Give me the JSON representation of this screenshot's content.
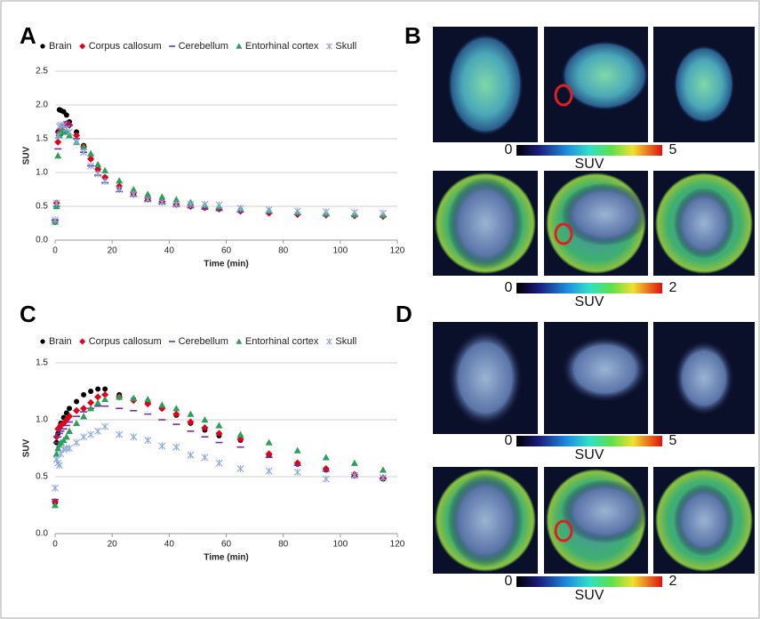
{
  "chart_data": [
    {
      "type": "scatter",
      "panel": "A",
      "xlabel": "Time (min)",
      "ylabel": "SUV",
      "x": [
        0,
        0.5,
        1,
        1.5,
        2,
        3,
        4,
        5,
        7.5,
        10,
        12.5,
        15,
        17.5,
        22.5,
        27.5,
        32.5,
        37.5,
        42.5,
        47.5,
        52.5,
        57.5,
        65,
        75,
        85,
        95,
        105,
        115
      ],
      "xlim": [
        0,
        120
      ],
      "xticks": [
        0,
        20,
        40,
        60,
        80,
        100,
        120
      ],
      "ylim": [
        0,
        2.5
      ],
      "yticks": [
        {
          "value": 0,
          "label": "0.0"
        },
        {
          "value": 0.5,
          "label": "0.5"
        },
        {
          "value": 1,
          "label": "1.0"
        },
        {
          "value": 1.5,
          "label": "1.5"
        },
        {
          "value": 2,
          "label": "2.0"
        },
        {
          "value": 2.5,
          "label": "2.5"
        }
      ],
      "grid": true,
      "legend": "top",
      "series": [
        {
          "name": "Brain",
          "color": "#000000",
          "marker": "circle",
          "values": [
            0.28,
            0.55,
            1.6,
            1.93,
            1.92,
            1.9,
            1.85,
            1.75,
            1.6,
            1.4,
            1.2,
            1.05,
            0.93,
            0.78,
            0.68,
            0.6,
            0.57,
            0.53,
            0.5,
            0.48,
            0.46,
            0.43,
            0.41,
            0.39,
            0.38,
            0.37,
            0.36
          ]
        },
        {
          "name": "Corpus callosum",
          "color": "#e3001b",
          "marker": "diamond",
          "values": [
            0.27,
            0.55,
            1.45,
            1.6,
            1.65,
            1.7,
            1.72,
            1.7,
            1.55,
            1.38,
            1.2,
            1.05,
            0.93,
            0.8,
            0.7,
            0.62,
            0.57,
            0.53,
            0.5,
            0.48,
            0.46,
            0.43,
            0.4,
            0.38,
            0.37,
            0.36,
            0.35
          ]
        },
        {
          "name": "Cerebellum",
          "color": "#7030a0",
          "marker": "dash",
          "values": [
            0.3,
            0.5,
            1.35,
            1.55,
            1.6,
            1.7,
            1.75,
            1.7,
            1.5,
            1.3,
            1.1,
            0.96,
            0.85,
            0.72,
            0.65,
            0.58,
            0.54,
            0.5,
            0.48,
            0.46,
            0.44,
            0.42,
            0.4,
            0.38,
            0.37,
            0.36,
            0.35
          ]
        },
        {
          "name": "Entorhinal cortex",
          "color": "#2ca05a",
          "marker": "triangle",
          "values": [
            0.27,
            0.5,
            1.25,
            1.55,
            1.6,
            1.62,
            1.6,
            1.55,
            1.45,
            1.38,
            1.28,
            1.12,
            1.03,
            0.88,
            0.75,
            0.68,
            0.64,
            0.6,
            0.56,
            0.52,
            0.5,
            0.47,
            0.44,
            0.41,
            0.39,
            0.38,
            0.37
          ]
        },
        {
          "name": "Skull",
          "color": "#8ea9db",
          "marker": "asterisk",
          "values": [
            0.3,
            0.55,
            1.55,
            1.68,
            1.7,
            1.7,
            1.65,
            1.6,
            1.45,
            1.3,
            1.1,
            0.98,
            0.87,
            0.75,
            0.68,
            0.6,
            0.56,
            0.53,
            0.53,
            0.53,
            0.52,
            0.47,
            0.45,
            0.43,
            0.42,
            0.41,
            0.4
          ]
        }
      ]
    },
    {
      "type": "scatter",
      "panel": "C",
      "xlabel": "Time (min)",
      "ylabel": "SUV",
      "x": [
        0,
        0.5,
        1,
        1.5,
        2,
        3,
        4,
        5,
        7.5,
        10,
        12.5,
        15,
        17.5,
        22.5,
        27.5,
        32.5,
        37.5,
        42.5,
        47.5,
        52.5,
        57.5,
        65,
        75,
        85,
        95,
        105,
        115
      ],
      "xlim": [
        0,
        120
      ],
      "xticks": [
        0,
        20,
        40,
        60,
        80,
        100,
        120
      ],
      "ylim": [
        0,
        1.5
      ],
      "yticks": [
        {
          "value": 0,
          "label": "0.0"
        },
        {
          "value": 0.5,
          "label": "0.5"
        },
        {
          "value": 1,
          "label": "1.0"
        },
        {
          "value": 1.5,
          "label": "1.5"
        }
      ],
      "grid": true,
      "legend": "top",
      "series": [
        {
          "name": "Brain",
          "color": "#000000",
          "marker": "circle",
          "values": [
            0.27,
            0.8,
            0.88,
            0.93,
            0.97,
            1.02,
            1.06,
            1.1,
            1.16,
            1.22,
            1.25,
            1.27,
            1.27,
            1.22,
            1.18,
            1.15,
            1.1,
            1.04,
            0.97,
            0.91,
            0.86,
            0.82,
            0.69,
            0.61,
            0.56,
            0.51,
            0.48
          ]
        },
        {
          "name": "Corpus callosum",
          "color": "#e3001b",
          "marker": "diamond",
          "values": [
            0.28,
            0.85,
            0.92,
            0.93,
            0.95,
            0.97,
            1.0,
            1.03,
            1.08,
            1.1,
            1.15,
            1.2,
            1.22,
            1.2,
            1.17,
            1.14,
            1.1,
            1.05,
            0.98,
            0.93,
            0.88,
            0.83,
            0.7,
            0.62,
            0.57,
            0.52,
            0.49
          ]
        },
        {
          "name": "Cerebellum",
          "color": "#7030a0",
          "marker": "dash",
          "values": [
            0.3,
            0.8,
            0.85,
            0.88,
            0.9,
            0.92,
            0.95,
            0.98,
            1.03,
            1.07,
            1.1,
            1.12,
            1.12,
            1.1,
            1.08,
            1.05,
            1.0,
            0.96,
            0.9,
            0.85,
            0.8,
            0.76,
            0.67,
            0.6,
            0.55,
            0.5,
            0.48
          ]
        },
        {
          "name": "Entorhinal cortex",
          "color": "#2ca05a",
          "marker": "triangle",
          "values": [
            0.25,
            0.7,
            0.75,
            0.78,
            0.8,
            0.82,
            0.85,
            0.9,
            0.97,
            1.03,
            1.1,
            1.15,
            1.18,
            1.2,
            1.19,
            1.18,
            1.13,
            1.1,
            1.05,
            1.0,
            0.95,
            0.87,
            0.8,
            0.73,
            0.67,
            0.62,
            0.56
          ]
        },
        {
          "name": "Skull",
          "color": "#8ea9db",
          "marker": "asterisk",
          "values": [
            0.4,
            0.65,
            0.62,
            0.6,
            0.7,
            0.74,
            0.75,
            0.75,
            0.8,
            0.85,
            0.87,
            0.9,
            0.94,
            0.87,
            0.85,
            0.82,
            0.77,
            0.76,
            0.69,
            0.67,
            0.62,
            0.57,
            0.55,
            0.54,
            0.48,
            0.51,
            0.49
          ]
        }
      ]
    }
  ],
  "images": [
    {
      "panel": "B",
      "colorbars": [
        {
          "min": 0,
          "max": 5,
          "label": "SUV"
        },
        {
          "min": 0,
          "max": 2,
          "label": "SUV"
        }
      ]
    },
    {
      "panel": "D",
      "colorbars": [
        {
          "min": 0,
          "max": 5,
          "label": "SUV"
        },
        {
          "min": 0,
          "max": 2,
          "label": "SUV"
        }
      ]
    }
  ]
}
